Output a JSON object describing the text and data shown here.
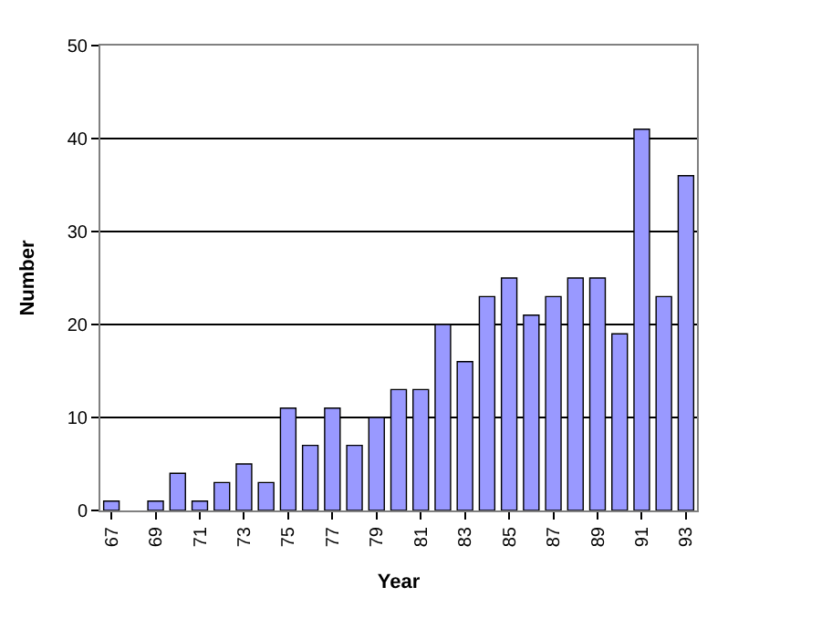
{
  "chart_data": {
    "type": "bar",
    "xlabel": "Year",
    "ylabel": "Number",
    "categories": [
      "67",
      null,
      "69",
      null,
      "71",
      null,
      "73",
      null,
      "75",
      null,
      "77",
      null,
      "79",
      null,
      "81",
      null,
      "83",
      null,
      "85",
      null,
      "87",
      null,
      "89",
      null,
      "91",
      null,
      "93"
    ],
    "values": [
      1,
      0,
      1,
      4,
      1,
      3,
      5,
      3,
      11,
      7,
      11,
      7,
      10,
      13,
      13,
      20,
      16,
      23,
      25,
      21,
      23,
      25,
      25,
      19,
      41,
      23,
      36
    ],
    "color": "#9999ff",
    "ylim": [
      0,
      50
    ],
    "yticks": [
      0,
      10,
      20,
      30,
      40,
      50
    ],
    "grid": "y"
  }
}
